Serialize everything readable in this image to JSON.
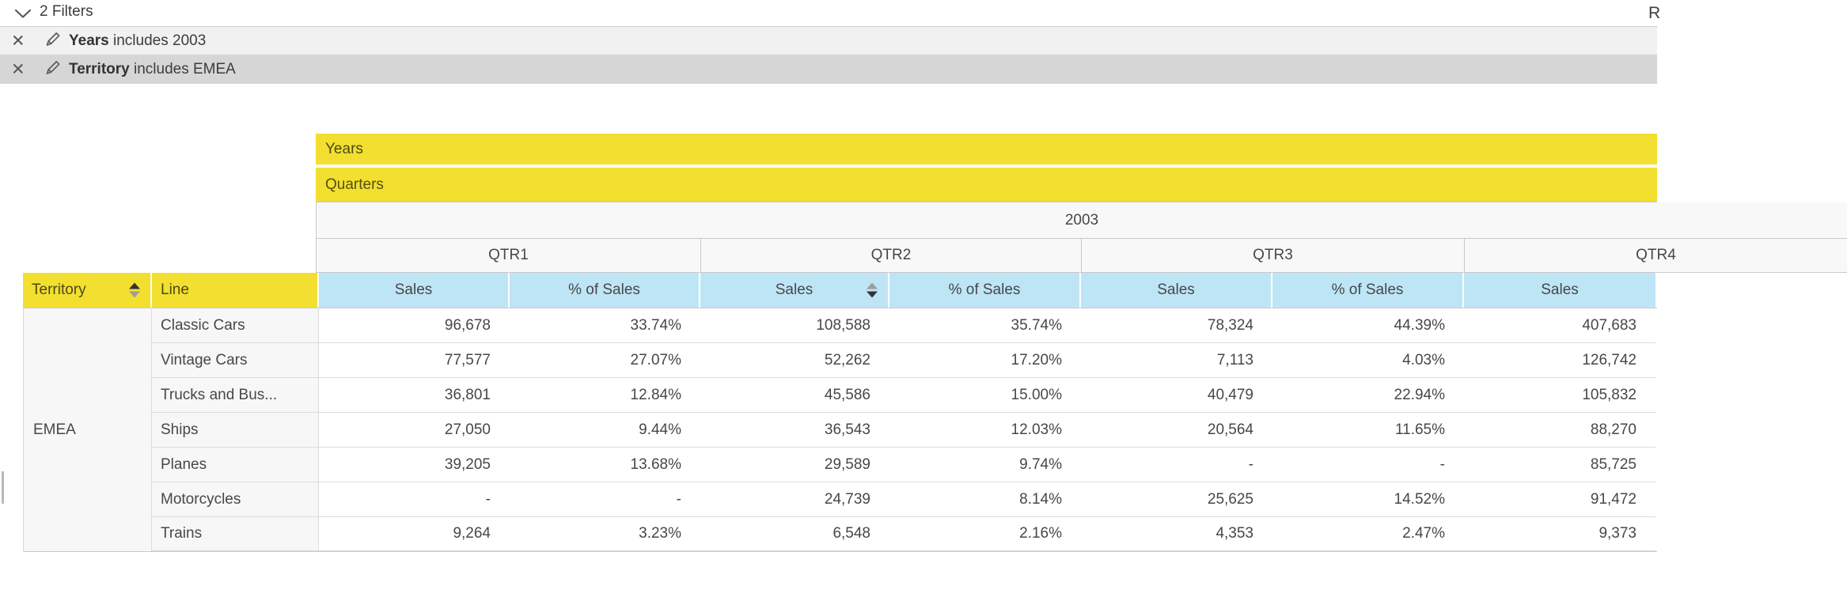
{
  "filters_panel": {
    "title": "2 Filters",
    "collapse_icon": "chevron-down-icon",
    "items": [
      {
        "field": "Years",
        "condition": "includes 2003"
      },
      {
        "field": "Territory",
        "condition": "includes EMEA"
      }
    ],
    "item_icons": [
      "remove-filter-icon",
      "edit-filter-icon"
    ]
  },
  "top_right": {
    "partial_text": "R"
  },
  "pivot": {
    "column_axis_labels": {
      "level1": "Years",
      "level2": "Quarters"
    },
    "year_label": "2003",
    "quarters": [
      "QTR1",
      "QTR2",
      "QTR3",
      "QTR4"
    ],
    "measure_headers": [
      "Sales",
      "% of Sales"
    ],
    "corner": {
      "territory": "Territory",
      "line": "Line"
    },
    "territory_value": "EMEA",
    "sort": {
      "territory_column": "ascending",
      "qtr2_sales_column": "descending"
    },
    "rows": [
      {
        "line": "Classic Cars",
        "values": [
          "96,678",
          "33.74%",
          "108,588",
          "35.74%",
          "78,324",
          "44.39%",
          "407,683"
        ]
      },
      {
        "line": "Vintage Cars",
        "values": [
          "77,577",
          "27.07%",
          "52,262",
          "17.20%",
          "7,113",
          "4.03%",
          "126,742"
        ]
      },
      {
        "line": "Trucks and Bus...",
        "values": [
          "36,801",
          "12.84%",
          "45,586",
          "15.00%",
          "40,479",
          "22.94%",
          "105,832"
        ]
      },
      {
        "line": "Ships",
        "values": [
          "27,050",
          "9.44%",
          "36,543",
          "12.03%",
          "20,564",
          "11.65%",
          "88,270"
        ]
      },
      {
        "line": "Planes",
        "values": [
          "39,205",
          "13.68%",
          "29,589",
          "9.74%",
          "-",
          "-",
          "85,725"
        ]
      },
      {
        "line": "Motorcycles",
        "values": [
          "-",
          "-",
          "24,739",
          "8.14%",
          "25,625",
          "14.52%",
          "91,472"
        ]
      },
      {
        "line": "Trains",
        "values": [
          "9,264",
          "3.23%",
          "6,548",
          "2.16%",
          "4,353",
          "2.47%",
          "9,373"
        ]
      }
    ]
  },
  "colors": {
    "accent_yellow": "#F2DF2F",
    "header_blue": "#BEE5F6",
    "filter_row1_bg": "#F1F1F1",
    "filter_row2_bg": "#D6D6D6",
    "alt_cell_bg": "#F7F7F7",
    "grid_border": "#C9C9C9",
    "text": "#474747"
  }
}
